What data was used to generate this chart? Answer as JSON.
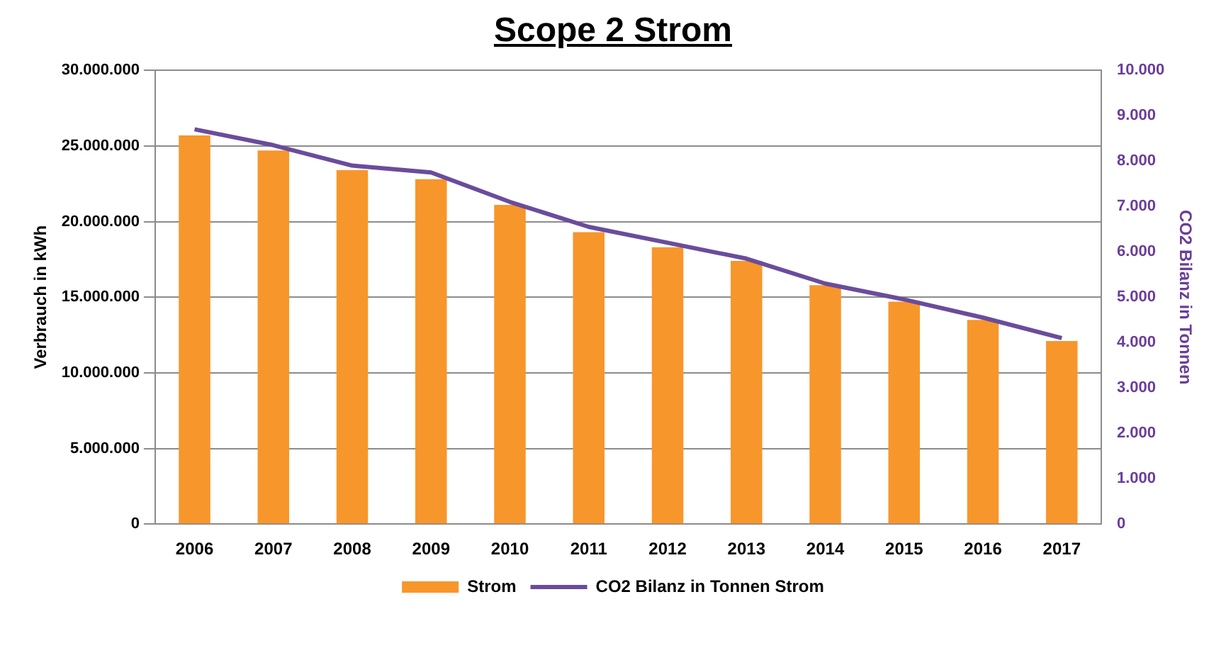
{
  "chart_data": {
    "type": "bar",
    "title": "Scope 2 Strom",
    "ylabel": "Verbrauch in kWh",
    "y2label": "CO2 Bilanz in Tonnen",
    "categories": [
      "2006",
      "2007",
      "2008",
      "2009",
      "2010",
      "2011",
      "2012",
      "2013",
      "2014",
      "2015",
      "2016",
      "2017"
    ],
    "series": [
      {
        "name": "Strom",
        "color": "#f7962b",
        "values": [
          25700000,
          24700000,
          23400000,
          22800000,
          21100000,
          19300000,
          18300000,
          17400000,
          15800000,
          14700000,
          13500000,
          12100000
        ]
      },
      {
        "name": "CO2 Bilanz in Tonnen Strom",
        "type": "line",
        "axis": "y2",
        "color": "#6a4c9c",
        "values": [
          8700,
          8350,
          7900,
          7750,
          7100,
          6550,
          6200,
          5850,
          5300,
          4950,
          4550,
          4100
        ]
      }
    ],
    "ylim": [
      0,
      30000000
    ],
    "yticks": [
      {
        "value": 0,
        "label": "0"
      },
      {
        "value": 5000000,
        "label": "5.000.000"
      },
      {
        "value": 10000000,
        "label": "10.000.000"
      },
      {
        "value": 15000000,
        "label": "15.000.000"
      },
      {
        "value": 20000000,
        "label": "20.000.000"
      },
      {
        "value": 25000000,
        "label": "25.000.000"
      },
      {
        "value": 30000000,
        "label": "30.000.000"
      }
    ],
    "y2lim": [
      0,
      10000
    ],
    "y2ticks": [
      {
        "value": 0,
        "label": "0"
      },
      {
        "value": 1000,
        "label": "1.000"
      },
      {
        "value": 2000,
        "label": "2.000"
      },
      {
        "value": 3000,
        "label": "3.000"
      },
      {
        "value": 4000,
        "label": "4.000"
      },
      {
        "value": 5000,
        "label": "5.000"
      },
      {
        "value": 6000,
        "label": "6.000"
      },
      {
        "value": 7000,
        "label": "7.000"
      },
      {
        "value": 8000,
        "label": "8.000"
      },
      {
        "value": 9000,
        "label": "9.000"
      },
      {
        "value": 10000,
        "label": "10.000"
      }
    ],
    "grid": "y",
    "legend": "bottom",
    "marker": "none",
    "line_style": "solid"
  }
}
